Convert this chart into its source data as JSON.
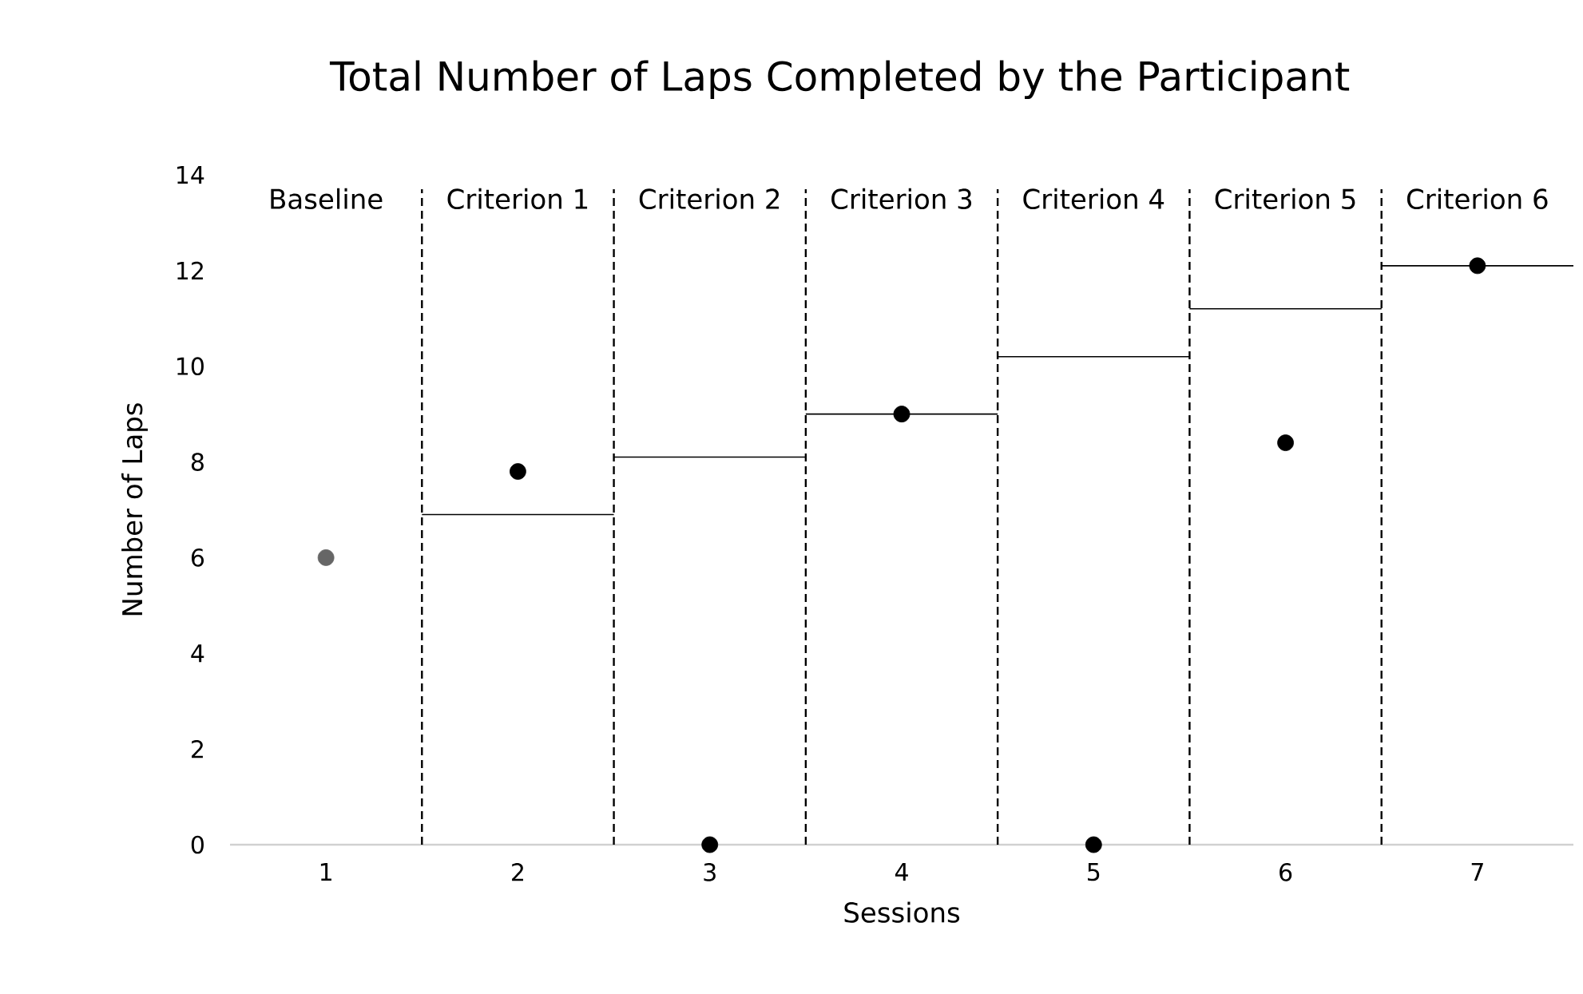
{
  "chart_data": {
    "type": "scatter",
    "title": "Total Number of Laps Completed by the Participant",
    "xlabel": "Sessions",
    "ylabel": "Number of Laps",
    "xlim": [
      0.5,
      7.5
    ],
    "xticks": [
      1,
      2,
      3,
      4,
      5,
      6,
      7
    ],
    "ylim": [
      0,
      14
    ],
    "yticks": [
      0,
      2,
      4,
      6,
      8,
      10,
      12,
      14
    ],
    "grid": false,
    "marker": "circle",
    "series": [
      {
        "x": [
          1,
          2,
          3,
          4,
          5,
          6,
          7
        ],
        "values": [
          6,
          7.8,
          0,
          9,
          0,
          8.4,
          12.1
        ],
        "colors": [
          "#666666",
          "#000000",
          "#000000",
          "#000000",
          "#000000",
          "#000000",
          "#000000"
        ]
      },
      {
        "type": "line",
        "marker": "none",
        "x": [
          1.5,
          2.5
        ],
        "values": [
          6.9,
          6.9
        ],
        "color": "#000000"
      },
      {
        "type": "line",
        "marker": "none",
        "x": [
          2.5,
          3.5
        ],
        "values": [
          8.1,
          8.1
        ],
        "color": "#000000"
      },
      {
        "type": "line",
        "marker": "none",
        "x": [
          3.5,
          4.5
        ],
        "values": [
          9,
          9
        ],
        "color": "#000000"
      },
      {
        "type": "line",
        "marker": "none",
        "x": [
          4.5,
          5.5
        ],
        "values": [
          10.2,
          10.2
        ],
        "color": "#000000"
      },
      {
        "type": "line",
        "marker": "none",
        "x": [
          5.5,
          6.5
        ],
        "values": [
          11.2,
          11.2
        ],
        "color": "#000000"
      },
      {
        "type": "line",
        "marker": "none",
        "x": [
          6.5,
          7.5
        ],
        "values": [
          12.1,
          12.1
        ],
        "color": "#000000"
      }
    ],
    "ref_lines": [
      {
        "axis": "x",
        "value": 1.5,
        "color": "#000000",
        "line_style": "dashed"
      },
      {
        "axis": "x",
        "value": 2.5,
        "color": "#000000",
        "line_style": "dashed"
      },
      {
        "axis": "x",
        "value": 3.5,
        "color": "#000000",
        "line_style": "dashed"
      },
      {
        "axis": "x",
        "value": 4.5,
        "color": "#000000",
        "line_style": "dashed"
      },
      {
        "axis": "x",
        "value": 5.5,
        "color": "#000000",
        "line_style": "dashed"
      },
      {
        "axis": "x",
        "value": 6.5,
        "color": "#000000",
        "line_style": "dashed"
      }
    ],
    "annotations": [
      "Baseline",
      "Criterion 1",
      "Criterion 2",
      "Criterion 3",
      "Criterion 4",
      "Criterion 5",
      "Criterion 6"
    ]
  }
}
